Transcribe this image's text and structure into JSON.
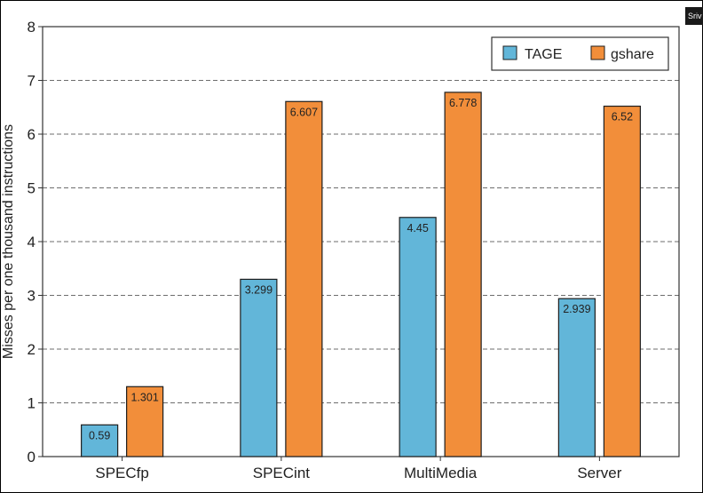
{
  "corner_tag": "Sriv",
  "chart_data": {
    "type": "bar",
    "title": "",
    "xlabel": "",
    "ylabel": "Misses per one thousand instructions",
    "ylim": [
      0,
      8
    ],
    "yticks": [
      "0",
      "1",
      "2",
      "3",
      "4",
      "5",
      "6",
      "7",
      "8"
    ],
    "grid": "horizontal-dashed",
    "legend": "top-right",
    "categories": [
      "SPECfp",
      "SPECint",
      "MultiMedia",
      "Server"
    ],
    "series": [
      {
        "name": "TAGE",
        "color": "#62b6d9",
        "values": [
          0.59,
          3.299,
          4.45,
          2.939
        ],
        "labels": [
          "0.59",
          "3.299",
          "4.45",
          "2.939"
        ]
      },
      {
        "name": "gshare",
        "color": "#f28e3a",
        "values": [
          1.301,
          6.607,
          6.778,
          6.52
        ],
        "labels": [
          "1.301",
          "6.607",
          "6.778",
          "6.52"
        ]
      }
    ]
  }
}
